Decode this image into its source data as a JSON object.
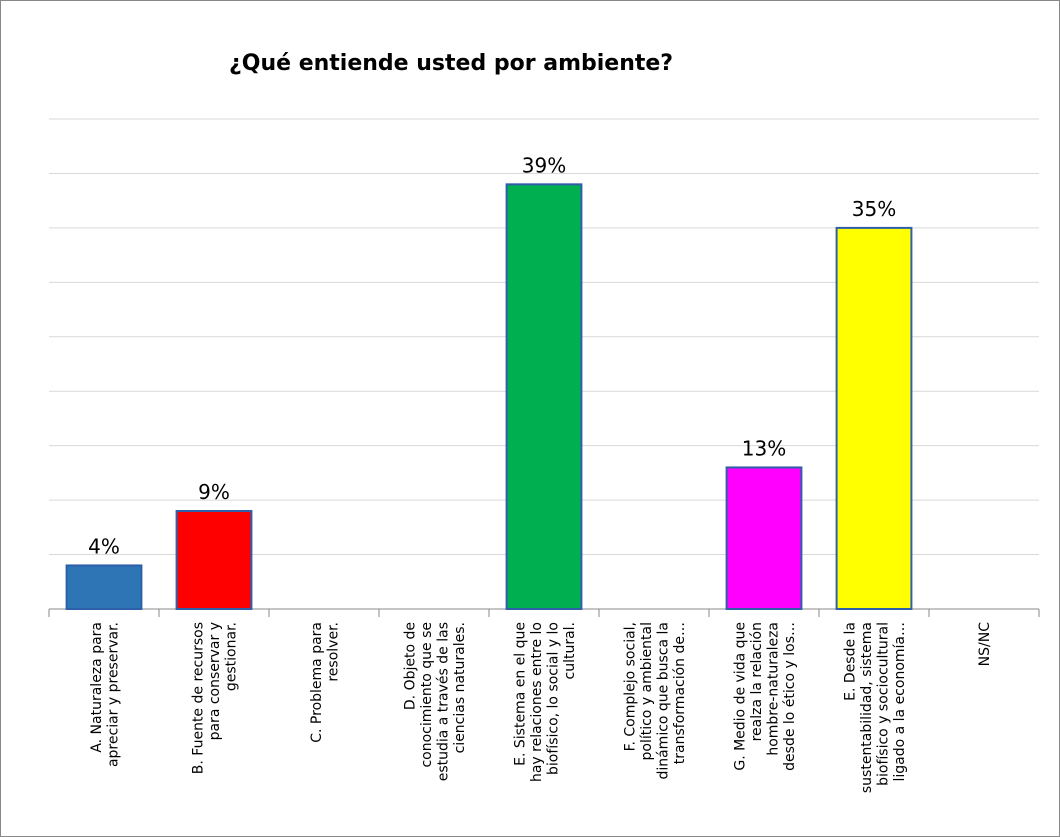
{
  "chart_data": {
    "type": "bar",
    "title": "¿Qué entiende usted por ambiente?",
    "categories": [
      "A. Naturaleza para\napreciar y preservar.",
      "B. Fuente de recursos\npara conservar y\ngestionar.",
      "C. Problema para\nresolver.",
      "D. Objeto de\nconocimiento que se\nestudia a través de las\nciencias naturales.",
      "E. Sistema en el que\nhay relaciones entre lo\nbiofísico, lo social y lo\ncultural.",
      "F. Complejo social,\npolítico y ambiental\ndinámico que busca la\ntransformación de…",
      "G. Medio de vida que\nrealza la relación\nhombre-naturaleza\ndesde lo ético y los…",
      "E. Desde la\nsustentabilidad, sistema\nbiofísico y sociocultural\nligado a la economía…",
      "NS/NC"
    ],
    "values": [
      4,
      9,
      0,
      0,
      39,
      0,
      13,
      35,
      0
    ],
    "value_labels": [
      "4%",
      "9%",
      null,
      null,
      "39%",
      null,
      "13%",
      "35%",
      null
    ],
    "colors": [
      "#2e75b6",
      "#ff0000",
      null,
      null,
      "#00b050",
      null,
      "#ff00ff",
      "#ffff00",
      null
    ],
    "ylim": [
      0,
      45
    ],
    "yticks": [
      0,
      5,
      10,
      15,
      20,
      25,
      30,
      35,
      40,
      45
    ],
    "grid": true
  }
}
